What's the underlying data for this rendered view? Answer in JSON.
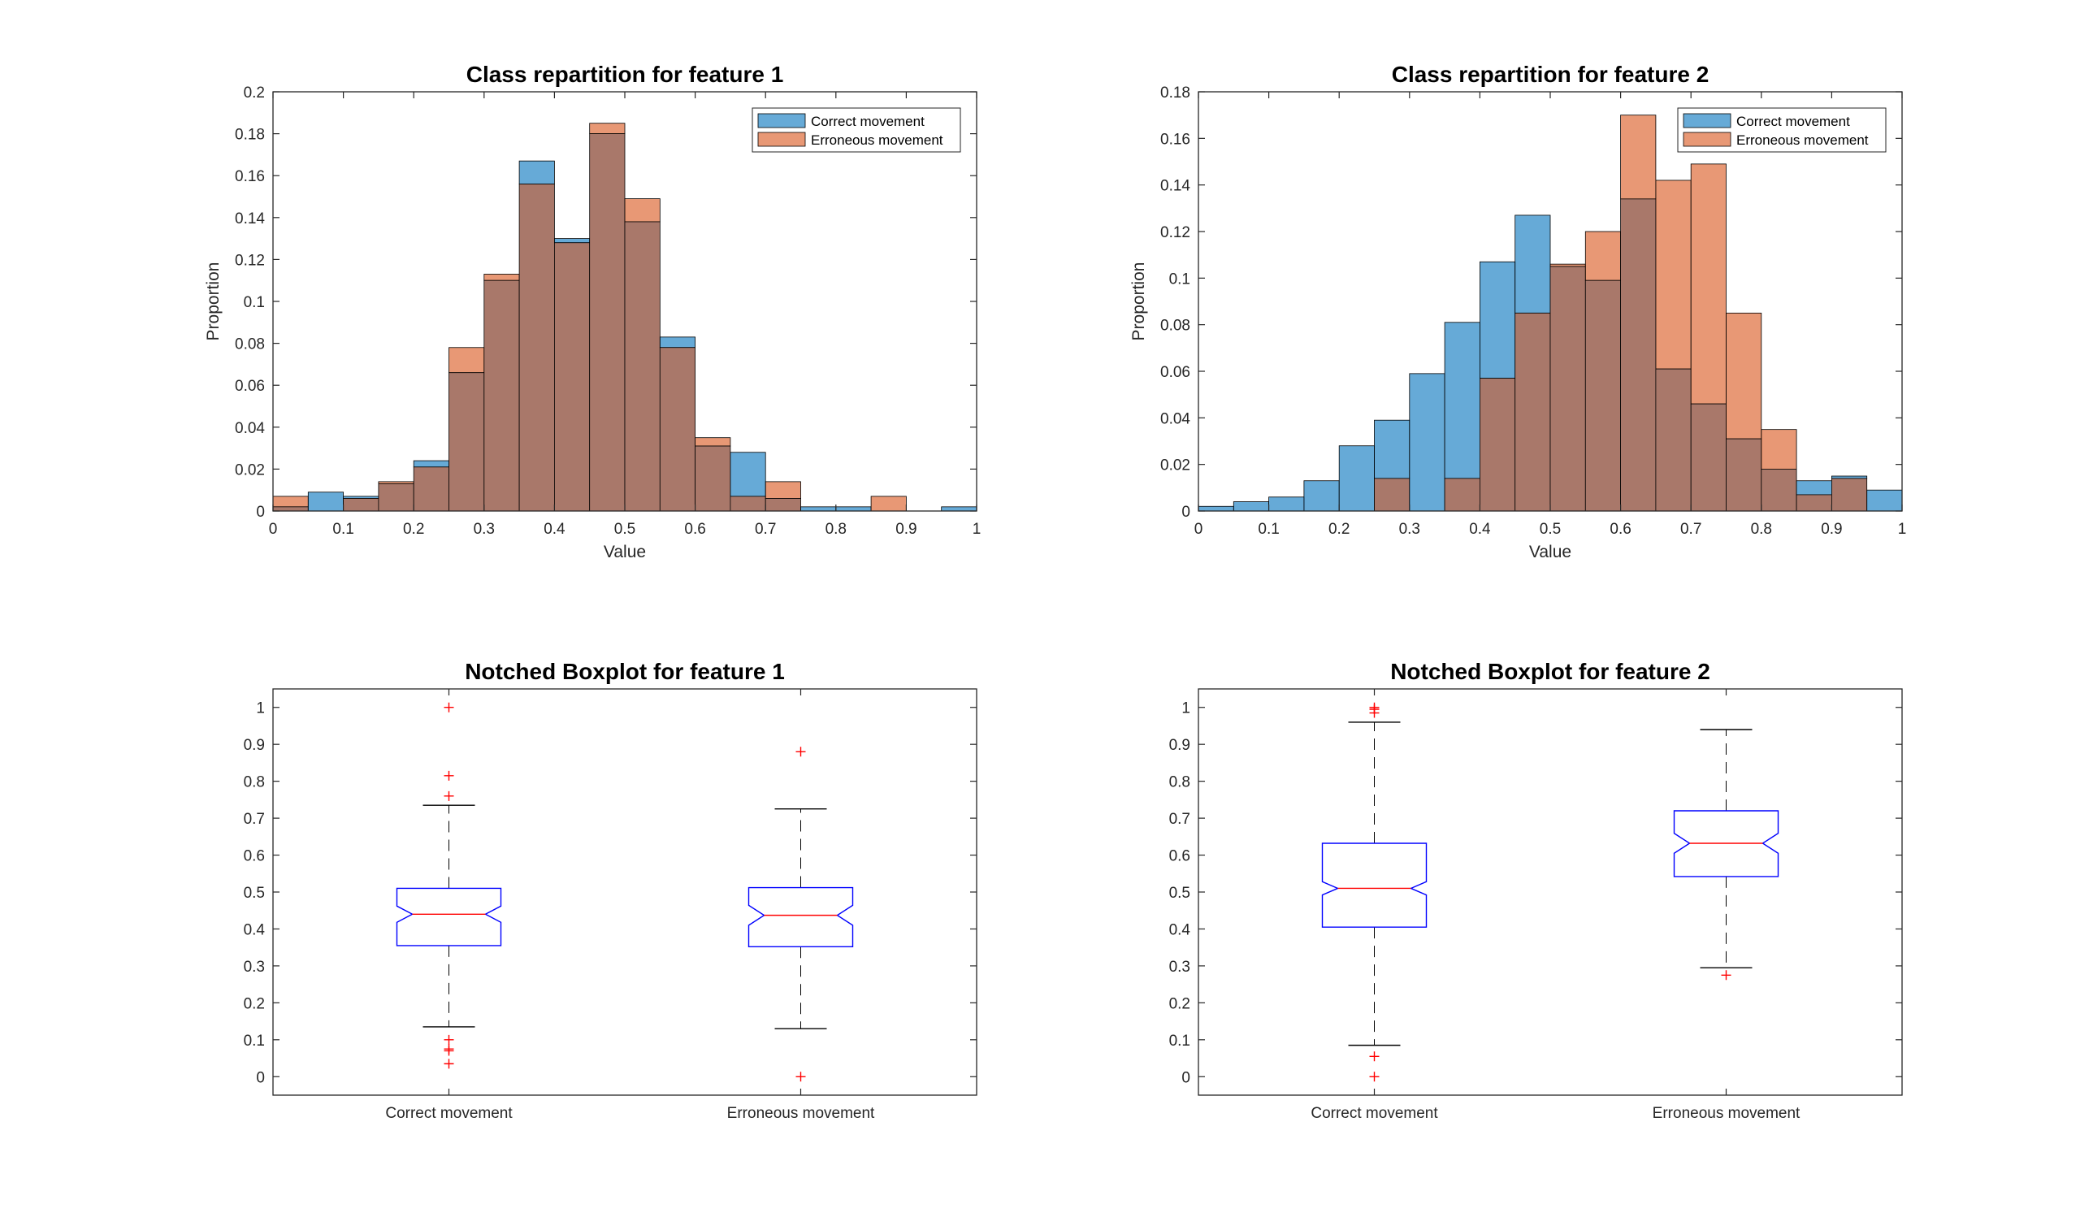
{
  "colors": {
    "correct": "#0072BD",
    "erroneous": "#D95319",
    "box": "#0000FF",
    "median": "#FF0000",
    "outlier": "#FF0000",
    "whisker": "#000000"
  },
  "chart_data": [
    {
      "type": "histogram",
      "title": "Class repartition for feature 1",
      "xlabel": "Value",
      "ylabel": "Proportion",
      "xlim": [
        0,
        1
      ],
      "ylim": [
        0,
        0.2
      ],
      "xticks": [
        "0",
        "0.1",
        "0.2",
        "0.3",
        "0.4",
        "0.5",
        "0.6",
        "0.7",
        "0.8",
        "0.9",
        "1"
      ],
      "yticks": [
        "0",
        "0.02",
        "0.04",
        "0.06",
        "0.08",
        "0.1",
        "0.12",
        "0.14",
        "0.16",
        "0.18",
        "0.2"
      ],
      "bin_width": 0.05,
      "legend": "top-right",
      "series": [
        {
          "name": "Correct movement",
          "values": [
            0.002,
            0.009,
            0.007,
            0.013,
            0.024,
            0.066,
            0.11,
            0.167,
            0.13,
            0.18,
            0.138,
            0.083,
            0.031,
            0.028,
            0.006,
            0.002,
            0.002,
            0,
            0,
            0.002
          ]
        },
        {
          "name": "Erroneous movement",
          "values": [
            0.007,
            0,
            0.006,
            0.014,
            0.021,
            0.078,
            0.113,
            0.156,
            0.128,
            0.185,
            0.149,
            0.078,
            0.035,
            0.007,
            0.014,
            0,
            0,
            0.007,
            0,
            0
          ]
        }
      ]
    },
    {
      "type": "histogram",
      "title": "Class repartition for feature 2",
      "xlabel": "Value",
      "ylabel": "Proportion",
      "xlim": [
        0,
        1
      ],
      "ylim": [
        0,
        0.18
      ],
      "xticks": [
        "0",
        "0.1",
        "0.2",
        "0.3",
        "0.4",
        "0.5",
        "0.6",
        "0.7",
        "0.8",
        "0.9",
        "1"
      ],
      "yticks": [
        "0",
        "0.02",
        "0.04",
        "0.06",
        "0.08",
        "0.1",
        "0.12",
        "0.14",
        "0.16",
        "0.18"
      ],
      "bin_width": 0.05,
      "legend": "top-right",
      "series": [
        {
          "name": "Correct movement",
          "values": [
            0.002,
            0.004,
            0.006,
            0.013,
            0.028,
            0.039,
            0.059,
            0.081,
            0.107,
            0.127,
            0.105,
            0.099,
            0.134,
            0.061,
            0.046,
            0.031,
            0.018,
            0.013,
            0.015,
            0.009
          ]
        },
        {
          "name": "Erroneous movement",
          "values": [
            0,
            0,
            0,
            0,
            0,
            0.014,
            0,
            0.014,
            0.057,
            0.085,
            0.106,
            0.12,
            0.17,
            0.142,
            0.149,
            0.085,
            0.035,
            0.007,
            0.014,
            0
          ]
        }
      ]
    },
    {
      "type": "boxplot",
      "title": "Notched Boxplot for feature 1",
      "categories": [
        "Correct movement",
        "Erroneous movement"
      ],
      "ylim": [
        -0.05,
        1.05
      ],
      "yticks": [
        "0",
        "0.1",
        "0.2",
        "0.3",
        "0.4",
        "0.5",
        "0.6",
        "0.7",
        "0.8",
        "0.9",
        "1"
      ],
      "boxes": [
        {
          "q1": 0.355,
          "median": 0.44,
          "q3": 0.51,
          "notch_low": 0.418,
          "notch_high": 0.462,
          "whisker_low": 0.135,
          "whisker_high": 0.735,
          "outliers": [
            0.035,
            0.07,
            0.075,
            0.1,
            0.76,
            0.815,
            1.0
          ]
        },
        {
          "q1": 0.352,
          "median": 0.437,
          "q3": 0.512,
          "notch_low": 0.41,
          "notch_high": 0.464,
          "whisker_low": 0.13,
          "whisker_high": 0.725,
          "outliers": [
            0.0,
            0.88
          ]
        }
      ]
    },
    {
      "type": "boxplot",
      "title": "Notched Boxplot for feature 2",
      "categories": [
        "Correct movement",
        "Erroneous movement"
      ],
      "ylim": [
        -0.05,
        1.05
      ],
      "yticks": [
        "0",
        "0.1",
        "0.2",
        "0.3",
        "0.4",
        "0.5",
        "0.6",
        "0.7",
        "0.8",
        "0.9",
        "1"
      ],
      "boxes": [
        {
          "q1": 0.405,
          "median": 0.51,
          "q3": 0.632,
          "notch_low": 0.492,
          "notch_high": 0.528,
          "whisker_low": 0.085,
          "whisker_high": 0.96,
          "outliers": [
            0.0,
            0.055,
            0.985,
            0.995,
            1.0
          ]
        },
        {
          "q1": 0.542,
          "median": 0.632,
          "q3": 0.72,
          "notch_low": 0.605,
          "notch_high": 0.659,
          "whisker_low": 0.295,
          "whisker_high": 0.94,
          "outliers": [
            0.275
          ]
        }
      ]
    }
  ]
}
